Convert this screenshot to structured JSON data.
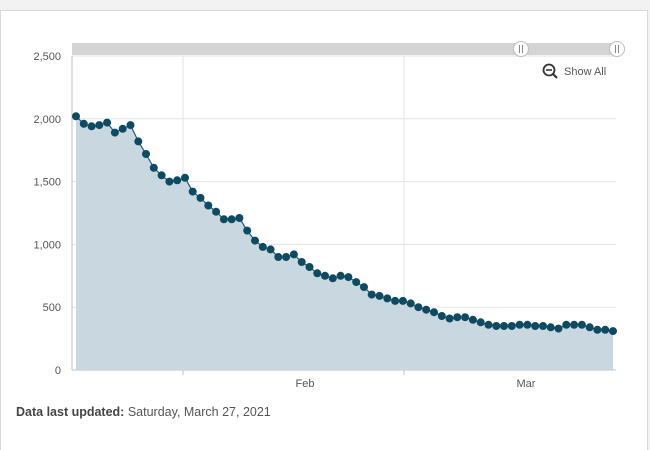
{
  "show_all_label": "Show All",
  "footer": {
    "label": "Data last updated:",
    "value": "Saturday, March 27, 2021"
  },
  "colors": {
    "line": "#1f5c77",
    "marker": "#0f4a63",
    "area": "#c9d8e0",
    "grid": "#e3e3e3"
  },
  "chart_data": {
    "type": "area",
    "title": "",
    "xlabel": "",
    "ylabel": "",
    "ylim": [
      0,
      2500
    ],
    "yticks": [
      0,
      500,
      1000,
      1500,
      2000,
      2500
    ],
    "ytick_labels": [
      "0",
      "500",
      "1,000",
      "1,500",
      "2,000",
      "2,500"
    ],
    "x_tick_labels": [
      "Feb",
      "Mar"
    ],
    "grid": true,
    "legend": "none",
    "series": [
      {
        "values": [
          2020,
          1960,
          1940,
          1950,
          1970,
          1890,
          1920,
          1950,
          1820,
          1720,
          1610,
          1550,
          1500,
          1510,
          1530,
          1420,
          1370,
          1310,
          1260,
          1200,
          1200,
          1210,
          1110,
          1030,
          980,
          960,
          900,
          900,
          920,
          860,
          820,
          770,
          750,
          730,
          750,
          740,
          700,
          660,
          600,
          590,
          570,
          550,
          550,
          530,
          500,
          480,
          460,
          430,
          410,
          420,
          420,
          400,
          380,
          360,
          350,
          350,
          350,
          360,
          360,
          350,
          350,
          340,
          330,
          360,
          360,
          360,
          340,
          320,
          320,
          310
        ]
      }
    ]
  }
}
